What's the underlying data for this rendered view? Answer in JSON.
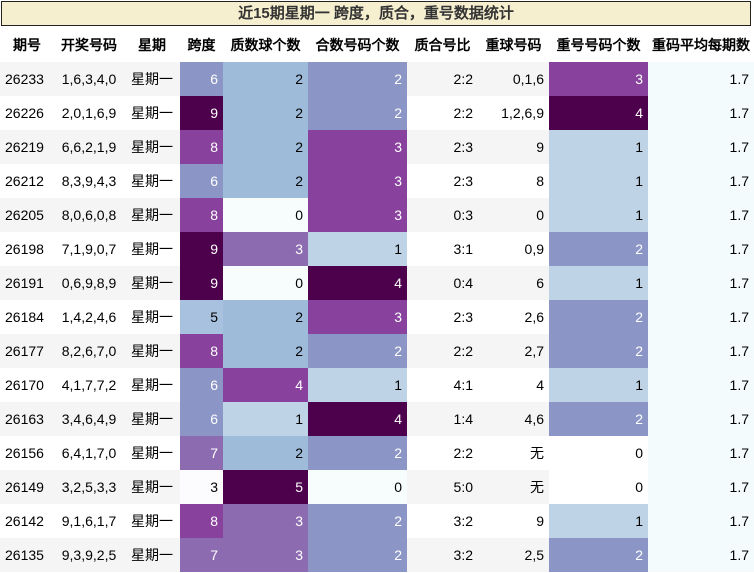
{
  "title": "近15期星期一 跨度，质合，重号数据统计",
  "headers": [
    "期号",
    "开奖号码",
    "星期",
    "跨度",
    "质数球个数",
    "合数号码个数",
    "质合号比",
    "重球号码",
    "重号号码个数",
    "重码平均每期数"
  ],
  "rows": [
    {
      "issue": "26233",
      "numbers": "1,6,3,4,0",
      "weekday": "星期一",
      "span": "6",
      "prime": "2",
      "composite": "2",
      "ratio": "2:2",
      "repeat": "0,1,6",
      "repeat_count": "3",
      "avg": "1.7"
    },
    {
      "issue": "26226",
      "numbers": "2,0,1,6,9",
      "weekday": "星期一",
      "span": "9",
      "prime": "2",
      "composite": "2",
      "ratio": "2:2",
      "repeat": "1,2,6,9",
      "repeat_count": "4",
      "avg": "1.7"
    },
    {
      "issue": "26219",
      "numbers": "6,6,2,1,9",
      "weekday": "星期一",
      "span": "8",
      "prime": "2",
      "composite": "3",
      "ratio": "2:3",
      "repeat": "9",
      "repeat_count": "1",
      "avg": "1.7"
    },
    {
      "issue": "26212",
      "numbers": "8,3,9,4,3",
      "weekday": "星期一",
      "span": "6",
      "prime": "2",
      "composite": "3",
      "ratio": "2:3",
      "repeat": "8",
      "repeat_count": "1",
      "avg": "1.7"
    },
    {
      "issue": "26205",
      "numbers": "8,0,6,0,8",
      "weekday": "星期一",
      "span": "8",
      "prime": "0",
      "composite": "3",
      "ratio": "0:3",
      "repeat": "0",
      "repeat_count": "1",
      "avg": "1.7"
    },
    {
      "issue": "26198",
      "numbers": "7,1,9,0,7",
      "weekday": "星期一",
      "span": "9",
      "prime": "3",
      "composite": "1",
      "ratio": "3:1",
      "repeat": "0,9",
      "repeat_count": "2",
      "avg": "1.7"
    },
    {
      "issue": "26191",
      "numbers": "0,6,9,8,9",
      "weekday": "星期一",
      "span": "9",
      "prime": "0",
      "composite": "4",
      "ratio": "0:4",
      "repeat": "6",
      "repeat_count": "1",
      "avg": "1.7"
    },
    {
      "issue": "26184",
      "numbers": "1,4,2,4,6",
      "weekday": "星期一",
      "span": "5",
      "prime": "2",
      "composite": "3",
      "ratio": "2:3",
      "repeat": "2,6",
      "repeat_count": "2",
      "avg": "1.7"
    },
    {
      "issue": "26177",
      "numbers": "8,2,6,7,0",
      "weekday": "星期一",
      "span": "8",
      "prime": "2",
      "composite": "2",
      "ratio": "2:2",
      "repeat": "2,7",
      "repeat_count": "2",
      "avg": "1.7"
    },
    {
      "issue": "26170",
      "numbers": "4,1,7,7,2",
      "weekday": "星期一",
      "span": "6",
      "prime": "4",
      "composite": "1",
      "ratio": "4:1",
      "repeat": "4",
      "repeat_count": "1",
      "avg": "1.7"
    },
    {
      "issue": "26163",
      "numbers": "3,4,6,4,9",
      "weekday": "星期一",
      "span": "6",
      "prime": "1",
      "composite": "4",
      "ratio": "1:4",
      "repeat": "4,6",
      "repeat_count": "2",
      "avg": "1.7"
    },
    {
      "issue": "26156",
      "numbers": "6,4,1,7,0",
      "weekday": "星期一",
      "span": "7",
      "prime": "2",
      "composite": "2",
      "ratio": "2:2",
      "repeat": "无",
      "repeat_count": "0",
      "avg": "1.7"
    },
    {
      "issue": "26149",
      "numbers": "3,2,5,3,3",
      "weekday": "星期一",
      "span": "3",
      "prime": "5",
      "composite": "0",
      "ratio": "5:0",
      "repeat": "无",
      "repeat_count": "0",
      "avg": "1.7"
    },
    {
      "issue": "26142",
      "numbers": "9,1,6,1,7",
      "weekday": "星期一",
      "span": "8",
      "prime": "3",
      "composite": "2",
      "ratio": "3:2",
      "repeat": "9",
      "repeat_count": "1",
      "avg": "1.7"
    },
    {
      "issue": "26135",
      "numbers": "9,3,9,2,5",
      "weekday": "星期一",
      "span": "7",
      "prime": "3",
      "composite": "2",
      "ratio": "3:2",
      "repeat": "2,5",
      "repeat_count": "2",
      "avg": "1.7"
    }
  ],
  "colors": {
    "span": {
      "3": "#fcfbfd",
      "5": "#a8c1df",
      "6": "#8c96c6",
      "7": "#8c6bb1",
      "8": "#88419d",
      "9": "#4d004b"
    },
    "count": {
      "0": "#f7fcfd",
      "1": "#bfd3e6",
      "2": "#9ebcda",
      "3": "#8c6bb1",
      "4": "#88419d",
      "5": "#4d004b"
    },
    "composite": {
      "0": "#f7fcfd",
      "1": "#bfd3e6",
      "2": "#8c96c6",
      "3": "#88419d",
      "4": "#4d004b"
    },
    "repeat_count": {
      "0": "#ffffff",
      "1": "#bfd3e6",
      "2": "#8c96c6",
      "3": "#88419d",
      "4": "#4d004b"
    },
    "avg": "#f4fbfd"
  }
}
